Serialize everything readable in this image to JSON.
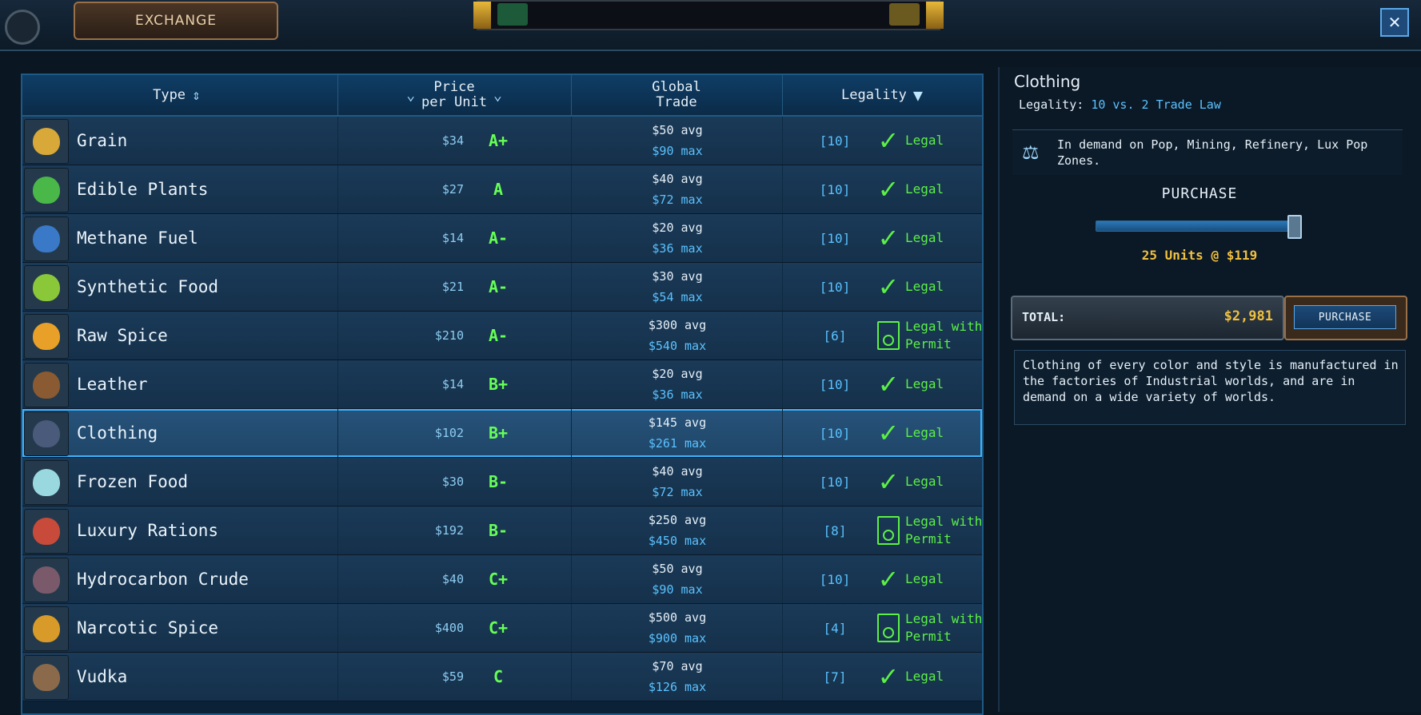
{
  "window": {
    "tab_title": "EXCHANGE",
    "close_label": "✕"
  },
  "table": {
    "columns": {
      "type": "Type",
      "price_line1": "Price",
      "price_line2": "per Unit",
      "global_line1": "Global",
      "global_line2": "Trade",
      "legality": "Legality"
    },
    "rows": [
      {
        "name": "Grain",
        "price": "$34",
        "grade": "A+",
        "avg": "$50 avg",
        "max": "$90 max",
        "count": "[10]",
        "legality": "Legal",
        "permit": false,
        "color": "#d8a838"
      },
      {
        "name": "Edible Plants",
        "price": "$27",
        "grade": "A",
        "avg": "$40 avg",
        "max": "$72 max",
        "count": "[10]",
        "legality": "Legal",
        "permit": false,
        "color": "#4ab848"
      },
      {
        "name": "Methane Fuel",
        "price": "$14",
        "grade": "A-",
        "avg": "$20 avg",
        "max": "$36 max",
        "count": "[10]",
        "legality": "Legal",
        "permit": false,
        "color": "#3a78c8"
      },
      {
        "name": "Synthetic Food",
        "price": "$21",
        "grade": "A-",
        "avg": "$30 avg",
        "max": "$54 max",
        "count": "[10]",
        "legality": "Legal",
        "permit": false,
        "color": "#8ac83a"
      },
      {
        "name": "Raw Spice",
        "price": "$210",
        "grade": "A-",
        "avg": "$300 avg",
        "max": "$540 max",
        "count": "[6]",
        "legality": "Legal with Permit",
        "permit": true,
        "color": "#e8a028"
      },
      {
        "name": "Leather",
        "price": "$14",
        "grade": "B+",
        "avg": "$20 avg",
        "max": "$36 max",
        "count": "[10]",
        "legality": "Legal",
        "permit": false,
        "color": "#8a5a32"
      },
      {
        "name": "Clothing",
        "price": "$102",
        "grade": "B+",
        "avg": "$145 avg",
        "max": "$261 max",
        "count": "[10]",
        "legality": "Legal",
        "permit": false,
        "color": "#4a5a7a",
        "selected": true
      },
      {
        "name": "Frozen Food",
        "price": "$30",
        "grade": "B-",
        "avg": "$40 avg",
        "max": "$72 max",
        "count": "[10]",
        "legality": "Legal",
        "permit": false,
        "color": "#9ad8e0"
      },
      {
        "name": "Luxury Rations",
        "price": "$192",
        "grade": "B-",
        "avg": "$250 avg",
        "max": "$450 max",
        "count": "[8]",
        "legality": "Legal with Permit",
        "permit": true,
        "color": "#c84a3a"
      },
      {
        "name": "Hydrocarbon Crude",
        "price": "$40",
        "grade": "C+",
        "avg": "$50 avg",
        "max": "$90 max",
        "count": "[10]",
        "legality": "Legal",
        "permit": false,
        "color": "#7a5a6a"
      },
      {
        "name": "Narcotic Spice",
        "price": "$400",
        "grade": "C+",
        "avg": "$500 avg",
        "max": "$900 max",
        "count": "[4]",
        "legality": "Legal with Permit",
        "permit": true,
        "color": "#d89a28"
      },
      {
        "name": "Vudka",
        "price": "$59",
        "grade": "C",
        "avg": "$70 avg",
        "max": "$126 max",
        "count": "[7]",
        "legality": "Legal",
        "permit": false,
        "color": "#8a6a4a"
      }
    ]
  },
  "detail": {
    "title": "Clothing",
    "legality_label": "Legality:",
    "legality_value": "10 vs. 2 Trade Law",
    "demand": "In demand on Pop, Mining, Refinery, Lux Pop Zones.",
    "purchase_label": "PURCHASE",
    "slider_fraction": 0.96,
    "units_text": "25 Units @ $119",
    "total_label": "TOTAL:",
    "total_value": "$2,981",
    "purchase_button": "PURCHASE",
    "description": "Clothing of every color and style is manufactured in the factories of Industrial worlds, and are in demand on a wide variety of worlds."
  }
}
